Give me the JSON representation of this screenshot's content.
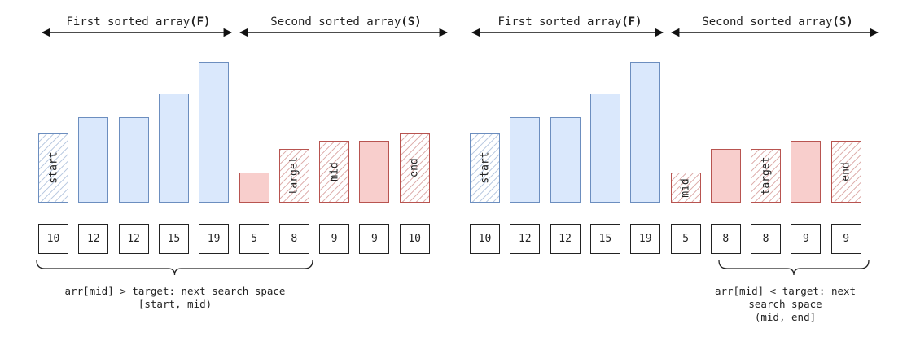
{
  "colors": {
    "blue_fill": "#dae8fc",
    "blue_stroke": "#6c8ebf",
    "red_fill": "#f8cecc",
    "red_stroke": "#b85450",
    "ink": "#222222"
  },
  "panels": [
    {
      "headers": {
        "first": "First sorted array",
        "first_tag": "(F)",
        "second": "Second sorted array",
        "second_tag": "(S)"
      },
      "heights": [
        10,
        12,
        12,
        15,
        19,
        5,
        8,
        9,
        9,
        10
      ],
      "cells": [
        "10",
        "12",
        "12",
        "15",
        "19",
        "5",
        "8",
        "9",
        "9",
        "10"
      ],
      "pointers": {
        "0": "start",
        "6": "target",
        "7": "mid",
        "9": "end"
      },
      "note": {
        "line1": "arr[mid] > target: next search space",
        "line2": "[start, mid)",
        "line3": "",
        "line4": ""
      }
    },
    {
      "headers": {
        "first": "First sorted array",
        "first_tag": "(F)",
        "second": "Second sorted array",
        "second_tag": "(S)"
      },
      "heights": [
        10,
        12,
        12,
        15,
        19,
        5,
        8,
        8,
        9,
        9
      ],
      "cells": [
        "10",
        "12",
        "12",
        "15",
        "19",
        "5",
        "8",
        "8",
        "9",
        "9"
      ],
      "pointers": {
        "0": "start",
        "5": "mid",
        "7": "target",
        "9": "end"
      },
      "note": {
        "line1": "arr[mid] < target: next",
        "line2": "search space",
        "line3": "(mid, end]",
        "line4": ""
      }
    }
  ]
}
